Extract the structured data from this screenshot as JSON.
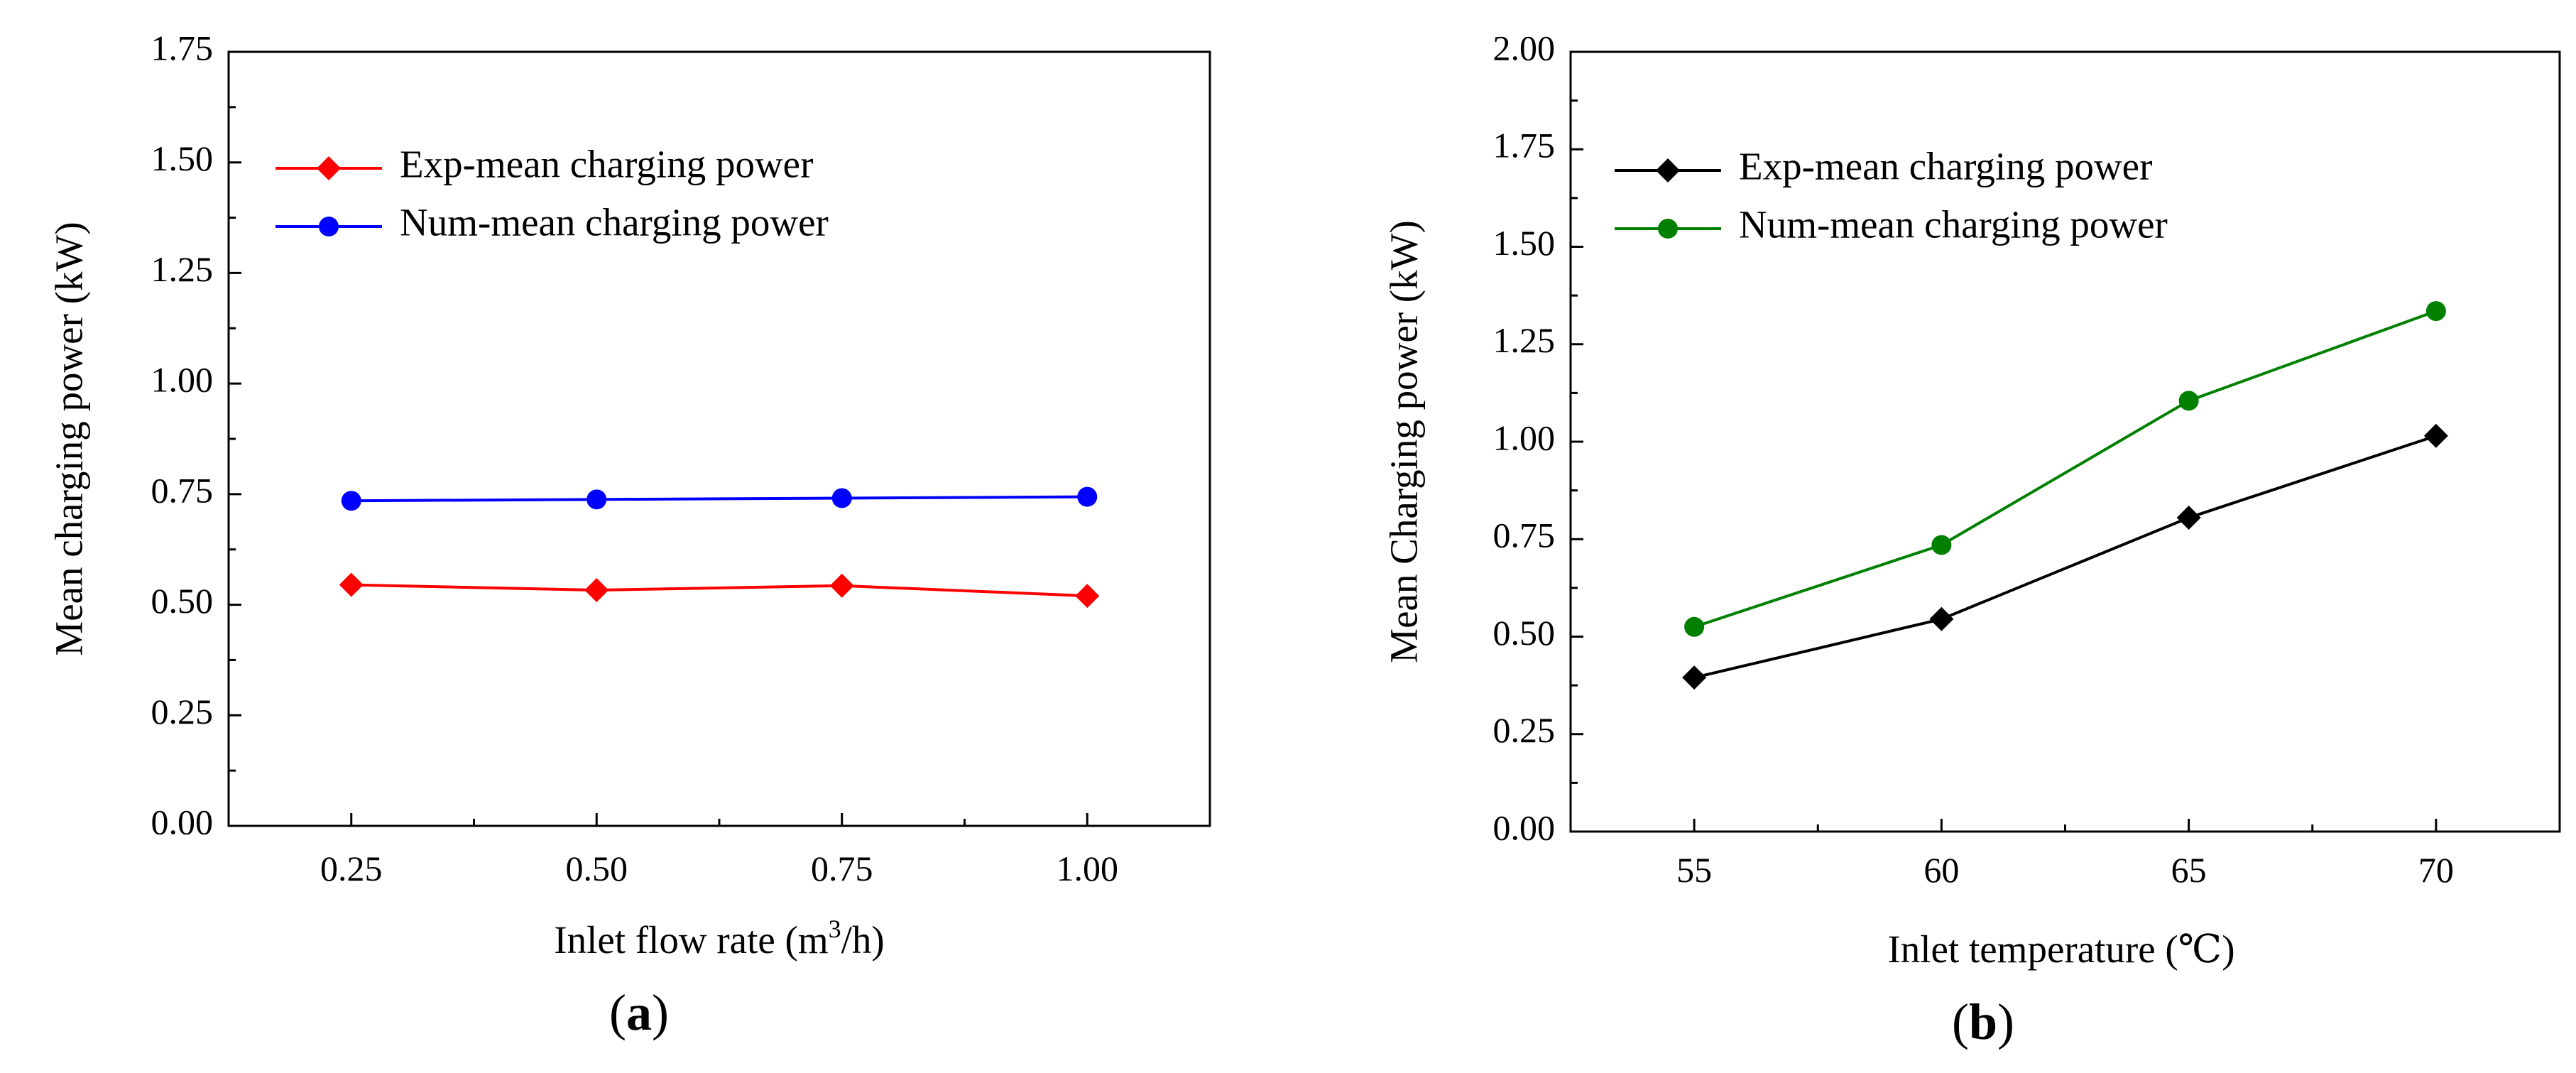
{
  "chart_data": [
    {
      "type": "line",
      "panel_label": "a",
      "title": "",
      "xlabel_prefix": "Inlet flow rate (m",
      "xlabel_sup": "3",
      "xlabel_suffix": "/h)",
      "ylabel": "Mean charging power (kW)",
      "x": [
        0.25,
        0.5,
        0.75,
        1.0
      ],
      "xticks": [
        "0.25",
        "0.50",
        "0.75",
        "1.00"
      ],
      "xlim": [
        0.125,
        1.125
      ],
      "yticks": [
        "0.00",
        "0.25",
        "0.50",
        "0.75",
        "1.00",
        "1.25",
        "1.50",
        "1.75"
      ],
      "ylim": [
        0,
        1.75
      ],
      "legend_position": "upper-left",
      "grid": false,
      "series": [
        {
          "name": "Exp-mean charging power",
          "color": "#ff0000",
          "marker": "diamond",
          "values": [
            0.545,
            0.533,
            0.543,
            0.52
          ]
        },
        {
          "name": "Num-mean charging power",
          "color": "#0000ff",
          "marker": "circle",
          "values": [
            0.735,
            0.738,
            0.741,
            0.744
          ]
        }
      ]
    },
    {
      "type": "line",
      "panel_label": "b",
      "title": "",
      "xlabel": "Inlet temperature (℃)",
      "ylabel": "Mean Charging power (kW)",
      "x": [
        55,
        60,
        65,
        70
      ],
      "xticks": [
        "55",
        "60",
        "65",
        "70"
      ],
      "xlim": [
        52.5,
        72.5
      ],
      "yticks": [
        "0.00",
        "0.25",
        "0.50",
        "0.75",
        "1.00",
        "1.25",
        "1.50",
        "1.75",
        "2.00"
      ],
      "ylim": [
        0,
        2.0
      ],
      "legend_position": "upper-left",
      "grid": false,
      "series": [
        {
          "name": "Exp-mean charging power",
          "color": "#000000",
          "marker": "diamond",
          "values": [
            0.395,
            0.545,
            0.805,
            1.015
          ]
        },
        {
          "name": "Num-mean charging power",
          "color": "#008000",
          "marker": "circle",
          "values": [
            0.525,
            0.735,
            1.105,
            1.335
          ]
        }
      ]
    }
  ]
}
